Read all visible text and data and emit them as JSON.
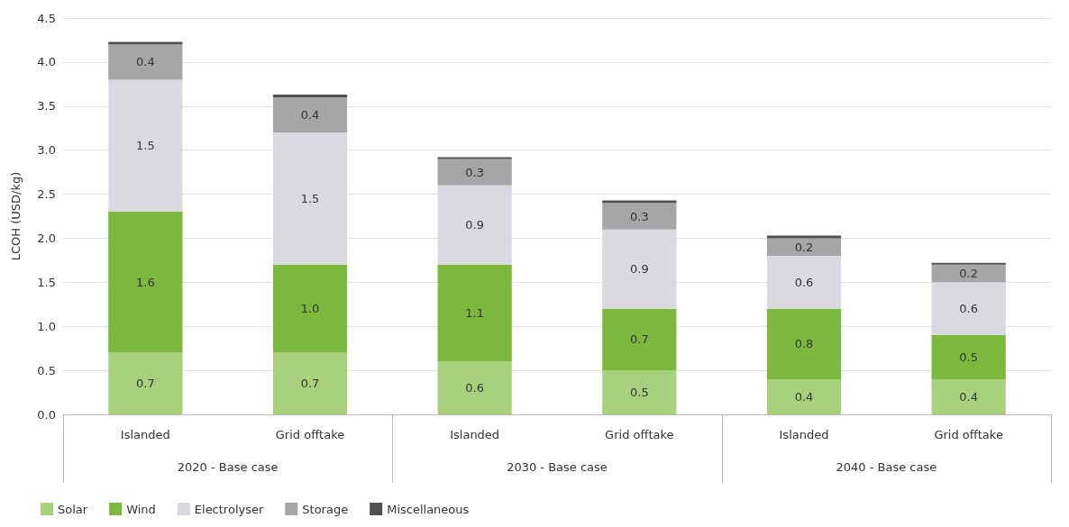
{
  "chart_data": {
    "type": "bar",
    "stacked": true,
    "ylabel": "LCOH (USD/kg)",
    "categories": [
      "Islanded",
      "Grid offtake",
      "Islanded",
      "Grid offtake",
      "Islanded",
      "Grid offtake"
    ],
    "annotations": [
      "2020 - Base case",
      "2030 - Base case",
      "2040 - Base case"
    ],
    "series": [
      {
        "name": "Solar",
        "color": "#a8d17e",
        "values": [
          0.7,
          0.7,
          0.6,
          0.5,
          0.4,
          0.4
        ],
        "value_labels": [
          "0.7",
          "0.7",
          "0.6",
          "0.5",
          "0.4",
          "0.4"
        ]
      },
      {
        "name": "Wind",
        "color": "#7db83e",
        "values": [
          1.6,
          1.0,
          1.1,
          0.7,
          0.8,
          0.5
        ],
        "value_labels": [
          "1.6",
          "1.0",
          "1.1",
          "0.7",
          "0.8",
          "0.5"
        ]
      },
      {
        "name": "Electrolyser",
        "color": "#d9d9df",
        "values": [
          1.5,
          1.5,
          0.9,
          0.9,
          0.6,
          0.6
        ],
        "value_labels": [
          "1.5",
          "1.5",
          "0.9",
          "0.9",
          "0.6",
          "0.6"
        ]
      },
      {
        "name": "Storage",
        "color": "#a6a6a6",
        "values": [
          0.4,
          0.4,
          0.3,
          0.3,
          0.2,
          0.2
        ],
        "value_labels": [
          "0.4",
          "0.4",
          "0.3",
          "0.3",
          "0.2",
          "0.2"
        ]
      },
      {
        "name": "Miscellaneous",
        "color": "#505050",
        "values": [
          0.03,
          0.03,
          0.02,
          0.03,
          0.03,
          0.02
        ]
      }
    ],
    "ylim": [
      0,
      4.5
    ],
    "yticks": [
      {
        "value": 0,
        "label": "0.0"
      },
      0.5,
      {
        "value": 1,
        "label": "1.0"
      },
      1.5,
      {
        "value": 2,
        "label": "2.0"
      },
      2.5,
      {
        "value": 3,
        "label": "3.0"
      },
      3.5,
      {
        "value": 4,
        "label": "4.0"
      },
      4.5
    ],
    "grid": "y",
    "legend": "bottom left"
  }
}
